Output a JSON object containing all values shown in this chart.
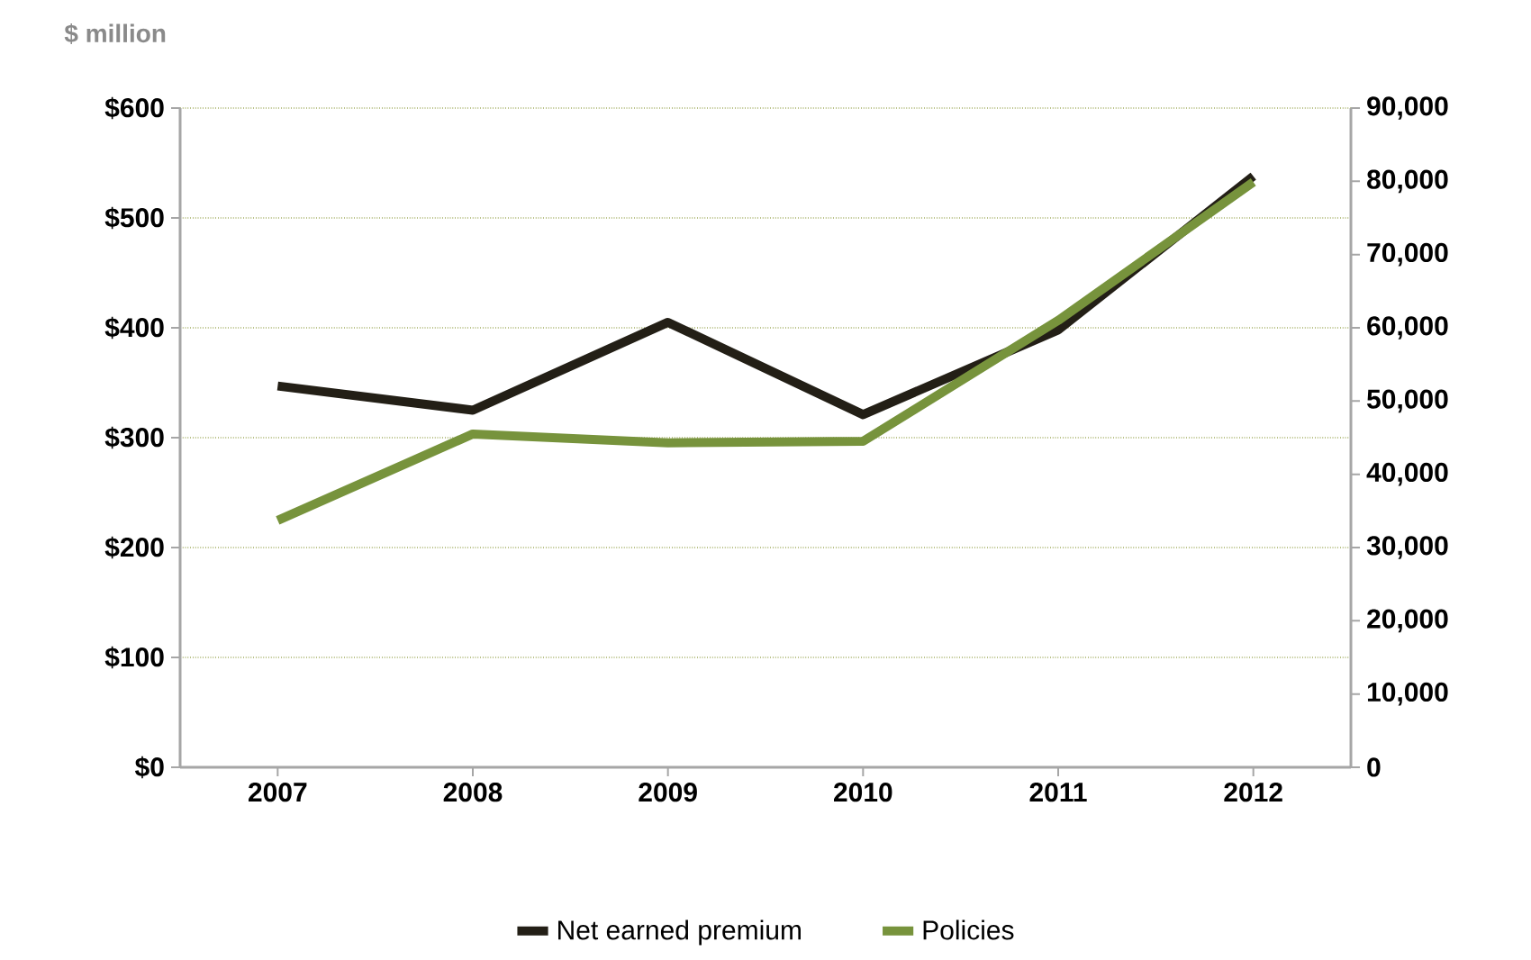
{
  "chart_data": {
    "type": "line",
    "ylabel": "$ million",
    "categories": [
      "2007",
      "2008",
      "2009",
      "2010",
      "2011",
      "2012"
    ],
    "series": [
      {
        "name": "Net earned premium",
        "color": "#231f16",
        "values": [
          347,
          325,
          405,
          321,
          398,
          538
        ]
      },
      {
        "name": "Policies",
        "color": "#77933c",
        "axis": "y2",
        "values": [
          33700,
          45500,
          44300,
          44500,
          61000,
          79900
        ]
      }
    ],
    "ylim": [
      0,
      600
    ],
    "yticks": [
      {
        "value": 0,
        "label": "$0"
      },
      {
        "value": 100,
        "label": "$100"
      },
      {
        "value": 200,
        "label": "$200"
      },
      {
        "value": 300,
        "label": "$300"
      },
      {
        "value": 400,
        "label": "$400"
      },
      {
        "value": 500,
        "label": "$500"
      },
      {
        "value": 600,
        "label": "$600"
      }
    ],
    "y2lim": [
      0,
      90000
    ],
    "y2ticks": [
      0,
      {
        "value": 10000,
        "label": "10,000"
      },
      {
        "value": 20000,
        "label": "20,000"
      },
      {
        "value": 30000,
        "label": "30,000"
      },
      {
        "value": 40000,
        "label": "40,000"
      },
      {
        "value": 50000,
        "label": "50,000"
      },
      {
        "value": 60000,
        "label": "60,000"
      },
      {
        "value": 70000,
        "label": "70,000"
      },
      {
        "value": 80000,
        "label": "80,000"
      },
      {
        "value": 90000,
        "label": "90,000"
      }
    ],
    "grid": "y",
    "legend": "bottom",
    "marker": "none",
    "line_style": "solid"
  }
}
